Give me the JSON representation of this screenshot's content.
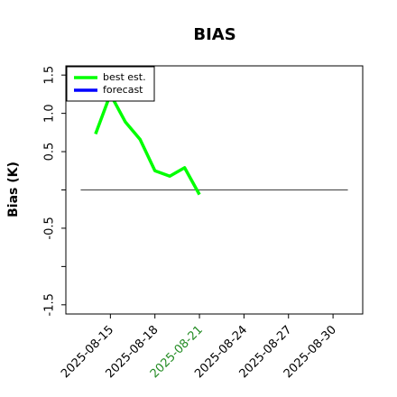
{
  "chart_data": {
    "type": "line",
    "title": "BIAS",
    "ylabel": "Bias (K)",
    "x": [
      "2025-08-14",
      "2025-08-15",
      "2025-08-16",
      "2025-08-17",
      "2025-08-18",
      "2025-08-19",
      "2025-08-20",
      "2025-08-21"
    ],
    "series": [
      {
        "name": "best est.",
        "color": "#00ff00",
        "values": [
          0.73,
          1.25,
          0.89,
          0.66,
          0.25,
          0.18,
          0.29,
          -0.06
        ]
      },
      {
        "name": "forecast",
        "color": "#0000ff",
        "values": [
          null,
          null,
          null,
          null,
          null,
          null,
          null,
          null
        ]
      }
    ],
    "reference_line": {
      "value": 0,
      "x": [
        "2025-08-13",
        "2025-08-31"
      ],
      "color": "#555555"
    },
    "xlim": [
      "2025-08-12",
      "2025-09-01"
    ],
    "xticks": [
      "2025-08-15",
      "2025-08-18",
      "2025-08-21",
      "2025-08-24",
      "2025-08-27",
      "2025-08-30"
    ],
    "xtick_colors": [
      "#000000",
      "#000000",
      "#228b22",
      "#000000",
      "#000000",
      "#000000"
    ],
    "ylim": [
      -1.62,
      1.62
    ],
    "yticks": [
      {
        "value": -1.5,
        "label": "-1.5"
      },
      {
        "value": -1.0,
        "label": null
      },
      {
        "value": -0.5,
        "label": "-0.5"
      },
      {
        "value": 0.0,
        "label": null
      },
      {
        "value": 0.5,
        "label": "0.5"
      },
      {
        "value": 1.0,
        "label": "1.0"
      },
      {
        "value": 1.5,
        "label": "1.5"
      }
    ],
    "legend": "upper left"
  }
}
